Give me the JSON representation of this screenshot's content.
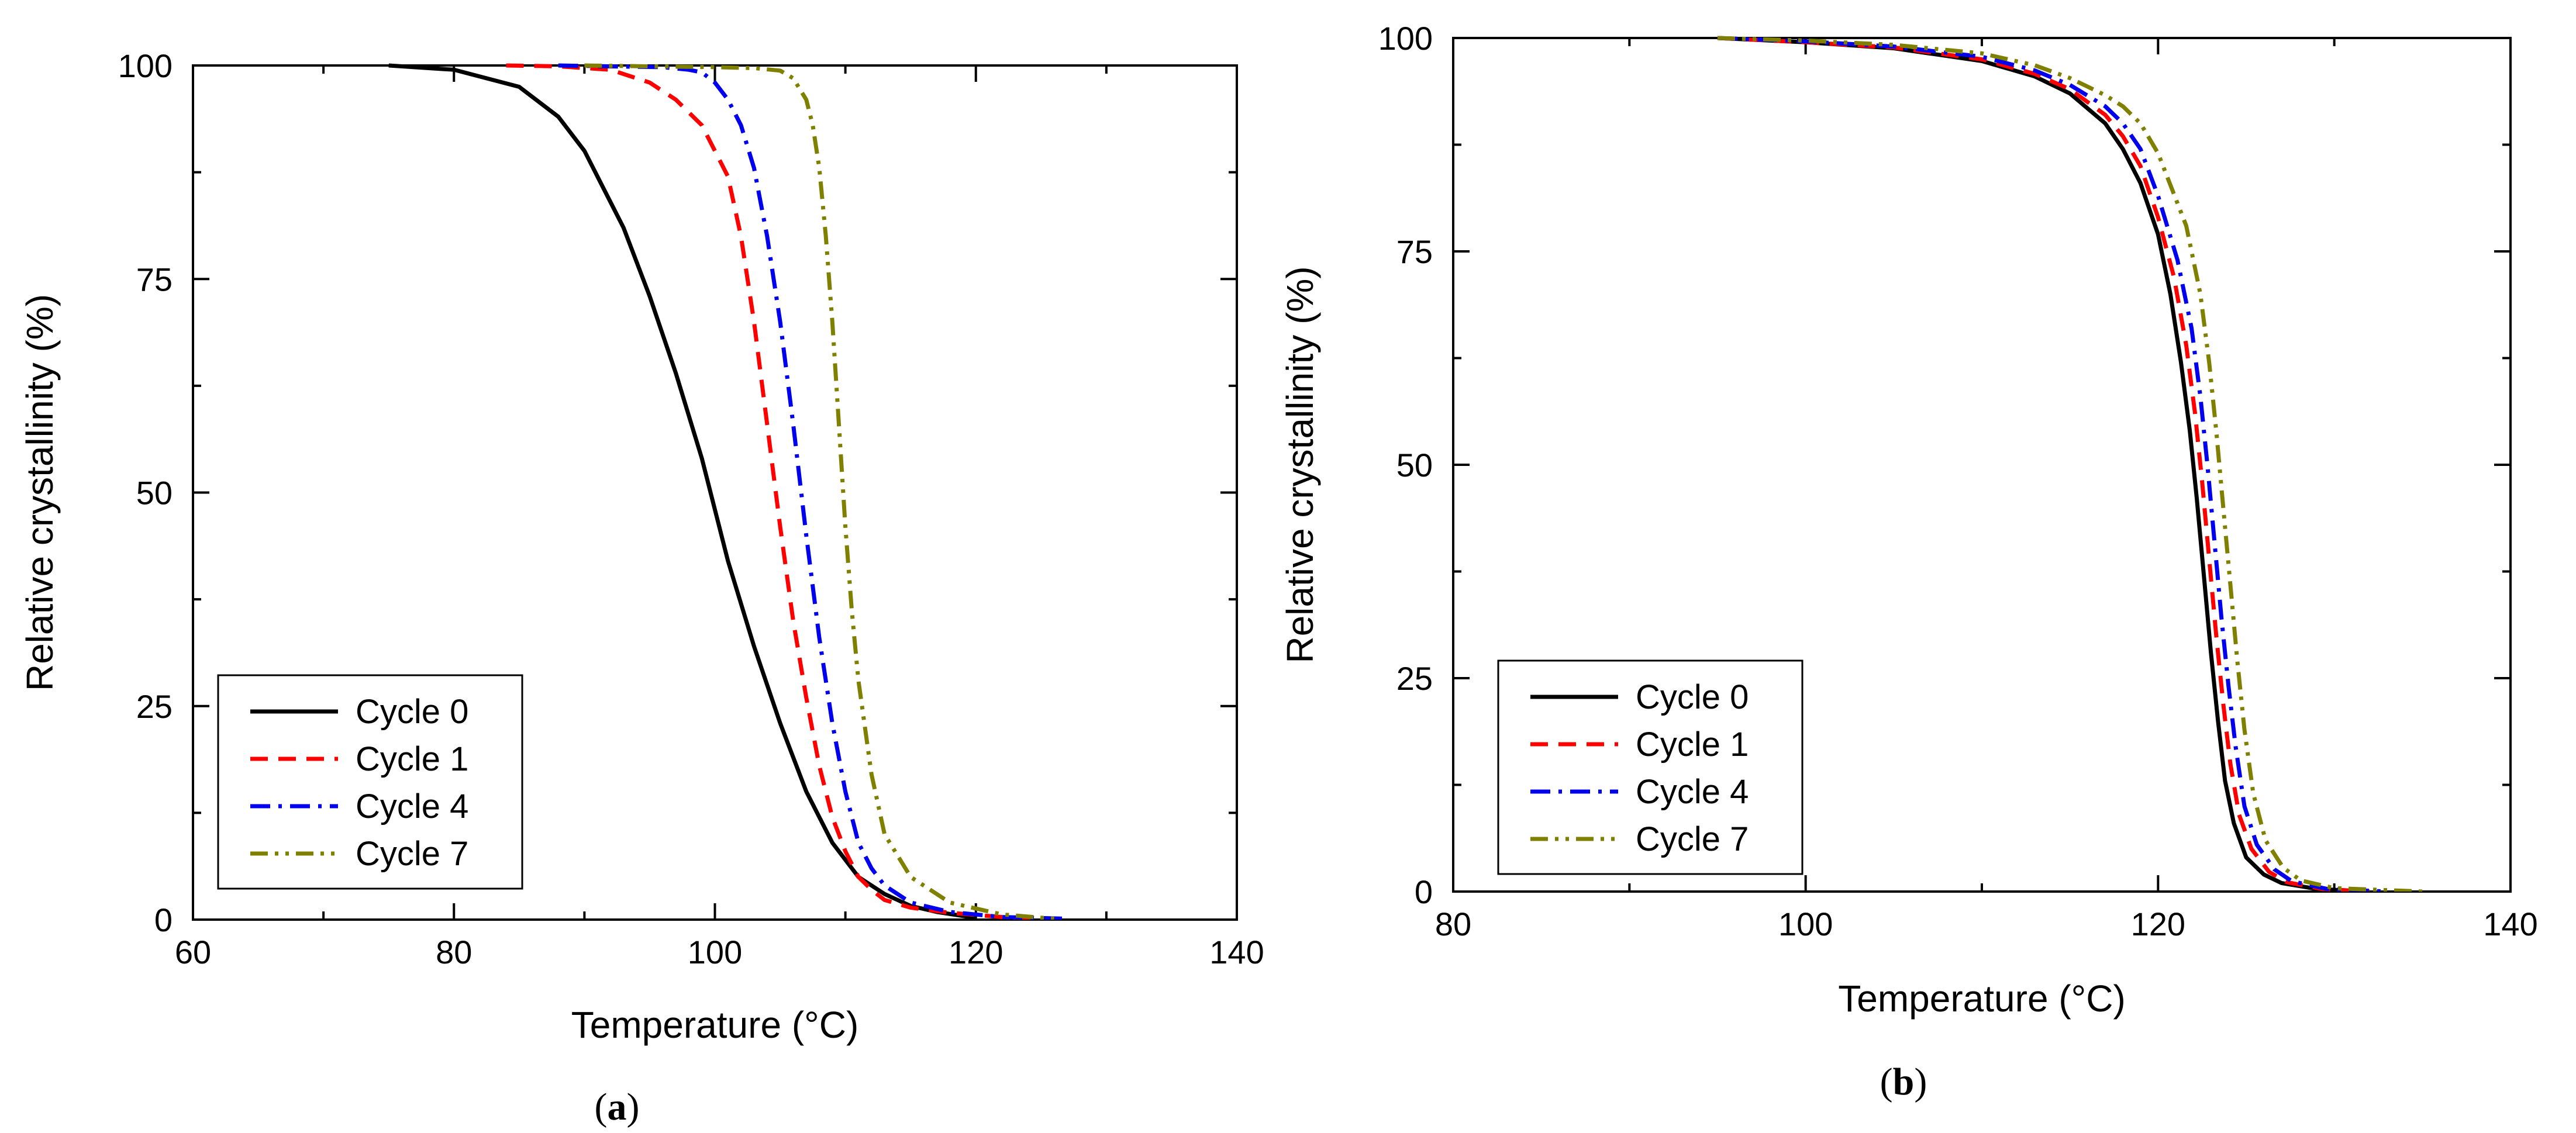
{
  "chart_data": [
    {
      "type": "line",
      "panel": "a",
      "title": "",
      "xlabel": "Temperature (°C)",
      "ylabel": "Relative crystallinity (%)",
      "xlim": [
        60,
        140
      ],
      "ylim": [
        0,
        100
      ],
      "xticks": [
        60,
        80,
        100,
        120,
        140
      ],
      "yticks": [
        0,
        25,
        50,
        75,
        100
      ],
      "legend_position": "bottom-left",
      "grid": false,
      "series": [
        {
          "name": "Cycle 0",
          "color": "#000000",
          "style": "solid",
          "x": [
            75,
            80,
            85,
            88,
            90,
            93,
            95,
            97,
            99,
            100,
            101,
            103,
            105,
            107,
            109,
            111,
            113,
            115,
            117,
            120
          ],
          "y": [
            100,
            99.5,
            97.5,
            94,
            90,
            81,
            73,
            64,
            54,
            48,
            42,
            32,
            23,
            15,
            9,
            5,
            3,
            1.6,
            0.9,
            0.2
          ]
        },
        {
          "name": "Cycle 1",
          "color": "#ff0000",
          "style": "dashed",
          "x": [
            84,
            88,
            92,
            95,
            97,
            99,
            101,
            102,
            103,
            104,
            105,
            106,
            107,
            108,
            109,
            110,
            111,
            112,
            113,
            115,
            118,
            122,
            125
          ],
          "y": [
            100,
            99.9,
            99.5,
            98,
            96,
            93,
            87,
            80,
            70,
            58,
            46,
            35,
            26,
            18,
            12,
            8,
            5,
            3.5,
            2.3,
            1.4,
            0.8,
            0.3,
            0.1
          ]
        },
        {
          "name": "Cycle 4",
          "color": "#0000ee",
          "style": "dashdot",
          "x": [
            88,
            92,
            96,
            98,
            99,
            100,
            101,
            102,
            103,
            104,
            105,
            106,
            107,
            108,
            109,
            110,
            111,
            112,
            113,
            115,
            118,
            122,
            127
          ],
          "y": [
            100,
            99.9,
            99.8,
            99.5,
            99.2,
            98,
            96,
            93,
            88,
            80,
            70,
            58,
            45,
            33,
            23,
            15,
            9,
            6,
            4,
            2,
            0.9,
            0.3,
            0.1
          ]
        },
        {
          "name": "Cycle 7",
          "color": "#808000",
          "style": "dashdotdot",
          "x": [
            90,
            95,
            100,
            103,
            105,
            106,
            107,
            107.5,
            108,
            108.5,
            109,
            109.5,
            110,
            110.5,
            111,
            112,
            113,
            115,
            118,
            122,
            126
          ],
          "y": [
            100,
            99.9,
            99.8,
            99.7,
            99.4,
            98.5,
            96,
            93,
            88,
            80,
            70,
            58,
            46,
            36,
            28,
            17,
            10,
            5,
            2,
            0.6,
            0.1
          ]
        }
      ]
    },
    {
      "type": "line",
      "panel": "b",
      "title": "",
      "xlabel": "Temperature (°C)",
      "ylabel": "Relative crystallinity (%)",
      "xlim": [
        80,
        140
      ],
      "ylim": [
        0,
        100
      ],
      "xticks": [
        80,
        100,
        120,
        140
      ],
      "yticks": [
        0,
        25,
        50,
        75,
        100
      ],
      "legend_position": "bottom-left",
      "grid": false,
      "series": [
        {
          "name": "Cycle 0",
          "color": "#000000",
          "style": "solid",
          "x": [
            95,
            100,
            105,
            110,
            113,
            115,
            117,
            118,
            119,
            120,
            120.7,
            121.3,
            121.8,
            122.2,
            122.6,
            123,
            123.4,
            123.8,
            124.3,
            125,
            126,
            127,
            129,
            132
          ],
          "y": [
            100,
            99.5,
            98.8,
            97.3,
            95.5,
            93.5,
            90,
            87,
            83,
            77,
            70,
            62,
            54,
            46,
            37,
            28,
            20,
            13,
            8,
            4,
            2,
            1,
            0.3,
            0
          ]
        },
        {
          "name": "Cycle 1",
          "color": "#ff0000",
          "style": "dashed",
          "x": [
            95,
            100,
            105,
            110,
            113,
            115,
            117,
            118,
            119,
            120,
            120.9,
            121.6,
            122.1,
            122.5,
            122.9,
            123.3,
            123.7,
            124.1,
            124.6,
            125.3,
            126.3,
            127.3,
            129.3,
            132
          ],
          "y": [
            100,
            99.5,
            98.9,
            97.5,
            95.8,
            94,
            91,
            88.5,
            85,
            79,
            72,
            64,
            56,
            48,
            39,
            30,
            22,
            15,
            9,
            5,
            2.3,
            1.1,
            0.3,
            0
          ]
        },
        {
          "name": "Cycle 4",
          "color": "#0000ee",
          "style": "dashdot",
          "x": [
            95,
            100,
            105,
            110,
            113,
            115,
            117,
            118,
            119,
            120,
            121.1,
            121.9,
            122.4,
            122.8,
            123.2,
            123.6,
            124,
            124.4,
            124.9,
            125.6,
            126.6,
            127.6,
            129.6,
            133
          ],
          "y": [
            100,
            99.6,
            99,
            97.8,
            96.2,
            94.5,
            92,
            90,
            87,
            81.5,
            74,
            66,
            58,
            50,
            41,
            32,
            24,
            17,
            10,
            5.5,
            2.6,
            1.2,
            0.3,
            0
          ]
        },
        {
          "name": "Cycle 7",
          "color": "#808000",
          "style": "dashdotdot",
          "x": [
            95,
            100,
            105,
            110,
            113,
            115,
            117,
            118,
            119,
            120,
            121.6,
            122.4,
            122.9,
            123.3,
            123.7,
            124.1,
            124.5,
            124.9,
            125.4,
            126.1,
            127.1,
            128.1,
            130,
            135
          ],
          "y": [
            100,
            99.7,
            99.2,
            98.2,
            96.8,
            95.3,
            93.3,
            92,
            90,
            86.5,
            78,
            70,
            62,
            54,
            45,
            36,
            27,
            19,
            11.5,
            6,
            2.8,
            1.3,
            0.4,
            0
          ]
        }
      ]
    }
  ],
  "panels": [
    {
      "label": "a",
      "open": "(",
      "close": ")"
    },
    {
      "label": "b",
      "open": "(",
      "close": ")"
    }
  ]
}
